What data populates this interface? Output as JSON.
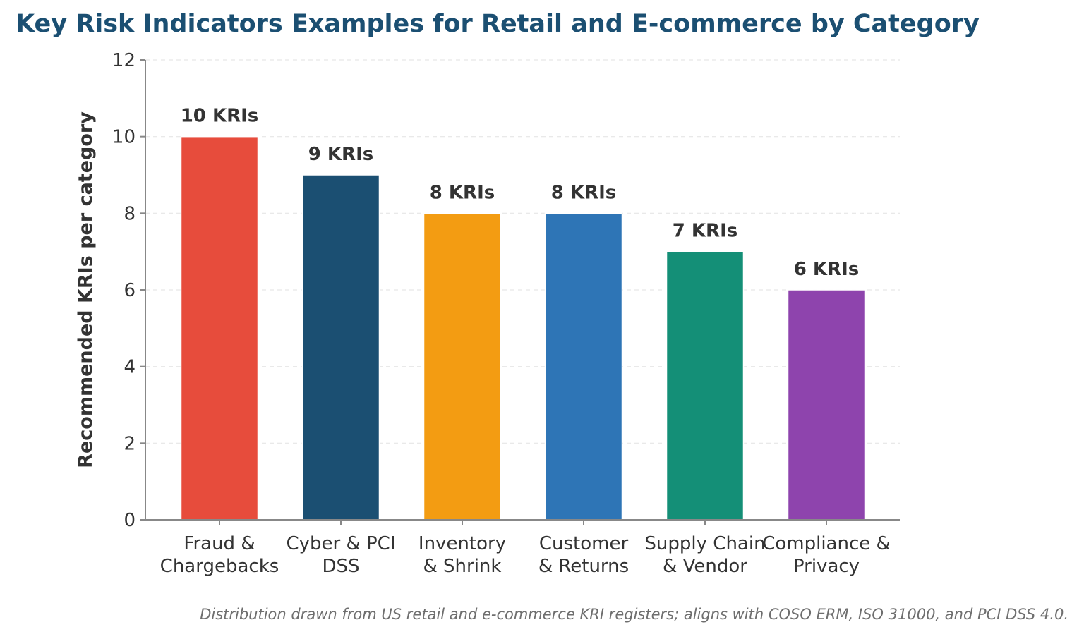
{
  "chart_data": {
    "type": "bar",
    "title": "Key Risk Indicators Examples for Retail and E-commerce by Category",
    "xlabel": "",
    "ylabel": "Recommended KRIs per category",
    "categories": [
      [
        "Fraud &",
        "Chargebacks"
      ],
      [
        "Cyber & PCI",
        "DSS"
      ],
      [
        "Inventory",
        "& Shrink"
      ],
      [
        "Customer",
        "& Returns"
      ],
      [
        "Supply Chain",
        "& Vendor"
      ],
      [
        "Compliance &",
        "Privacy"
      ]
    ],
    "values": [
      10,
      9,
      8,
      8,
      7,
      6
    ],
    "data_labels": [
      "10 KRIs",
      "9 KRIs",
      "8 KRIs",
      "8 KRIs",
      "7 KRIs",
      "6 KRIs"
    ],
    "colors": [
      "#e74c3c",
      "#1b4f72",
      "#f39c12",
      "#2e75b6",
      "#148f77",
      "#8e44ad"
    ],
    "ylim": [
      0,
      12
    ],
    "yticks": [
      0,
      2,
      4,
      6,
      8,
      10,
      12
    ],
    "grid": "horizontal dashed",
    "legend": "none",
    "note": "Distribution drawn from US retail and e-commerce KRI registers; aligns with COSO ERM, ISO 31000, and PCI DSS 4.0."
  }
}
